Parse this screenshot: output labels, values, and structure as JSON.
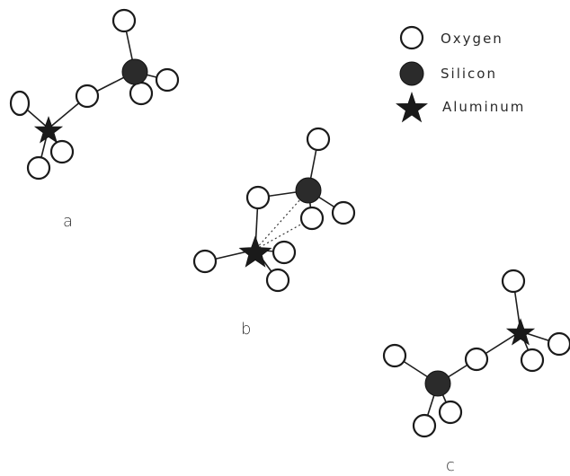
{
  "legend": {
    "oxygen_label": "Oxygen",
    "silicon_label": "Silicon",
    "aluminum_label": "Aluminum"
  },
  "panels": {
    "a": {
      "label": "a"
    },
    "b": {
      "label": "b"
    },
    "c": {
      "label": "c"
    }
  },
  "colors": {
    "oxygen_fill": "#ffffff",
    "silicon_fill": "#2b2b2b",
    "aluminum_fill": "#1a1a1a",
    "line": "#1e1e1e"
  }
}
